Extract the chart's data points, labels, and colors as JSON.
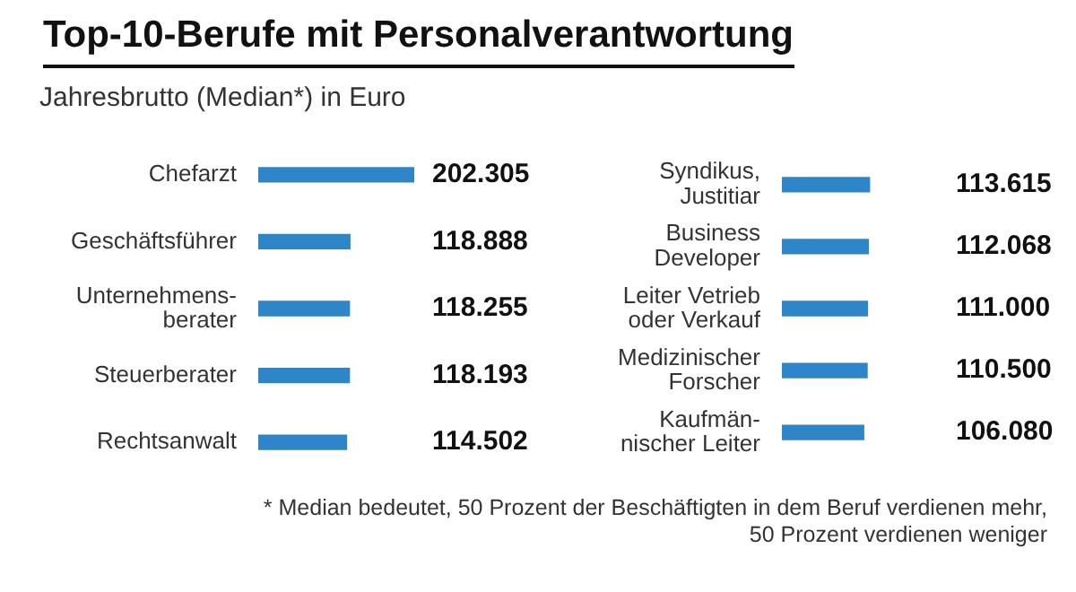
{
  "chart_data": [
    {
      "type": "bar",
      "orientation": "horizontal",
      "title": "Top-10-Berufe mit Personalverantwortung",
      "subtitle": "Jahresbrutto (Median*) in Euro",
      "categories": [
        "Chefarzt",
        "Geschäftsführer",
        "Unternehmens-\nberater",
        "Steuerberater",
        "Rechtsanwalt"
      ],
      "values": [
        202305,
        118888,
        118255,
        118193,
        114502
      ],
      "value_labels": [
        "202.305",
        "118.888",
        "118.255",
        "118.193",
        "114.502"
      ],
      "color": "#2e86c9"
    },
    {
      "type": "bar",
      "orientation": "horizontal",
      "categories": [
        "Syndikus,\nJustitiar",
        "Business\nDeveloper",
        "Leiter Vetrieb\noder Verkauf",
        "Medizinischer\nForscher",
        "Kaufmän-\nnischer Leiter"
      ],
      "values": [
        113615,
        112068,
        111000,
        110500,
        106080
      ],
      "value_labels": [
        "113.615",
        "112.068",
        "111.000",
        "110.500",
        "106.080"
      ],
      "color": "#2e86c9",
      "annotations": [
        "* Median bedeutet, 50 Prozent der Beschäftigten in dem Beruf verdienen mehr,\n50 Prozent verdienen weniger"
      ]
    }
  ]
}
